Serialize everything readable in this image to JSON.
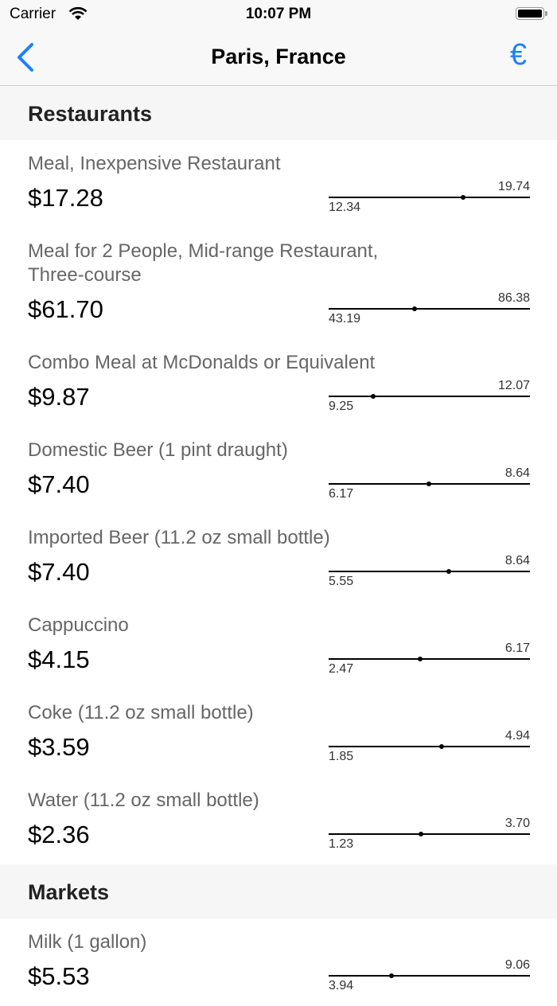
{
  "status_bar": {
    "carrier": "Carrier",
    "time": "10:07 PM"
  },
  "nav": {
    "title": "Paris, France",
    "currency_symbol": "€",
    "accent": "#1a82fb"
  },
  "sections": [
    {
      "title": "Restaurants",
      "items": [
        {
          "label": "Meal, Inexpensive Restaurant",
          "price": "$17.28",
          "value": 17.28,
          "min": "12.34",
          "max": "19.74"
        },
        {
          "label": "Meal for 2 People, Mid-range Restaurant, Three-course",
          "price": "$61.70",
          "value": 61.7,
          "min": "43.19",
          "max": "86.38"
        },
        {
          "label": "Combo Meal at McDonalds or Equivalent",
          "price": "$9.87",
          "value": 9.87,
          "min": "9.25",
          "max": "12.07"
        },
        {
          "label": "Domestic Beer (1 pint draught)",
          "price": "$7.40",
          "value": 7.4,
          "min": "6.17",
          "max": "8.64"
        },
        {
          "label": "Imported Beer (11.2 oz small bottle)",
          "price": "$7.40",
          "value": 7.4,
          "min": "5.55",
          "max": "8.64"
        },
        {
          "label": "Cappuccino",
          "price": "$4.15",
          "value": 4.15,
          "min": "2.47",
          "max": "6.17"
        },
        {
          "label": "Coke (11.2 oz small bottle)",
          "price": "$3.59",
          "value": 3.59,
          "min": "1.85",
          "max": "4.94"
        },
        {
          "label": "Water (11.2 oz small bottle)",
          "price": "$2.36",
          "value": 2.36,
          "min": "1.23",
          "max": "3.70"
        }
      ]
    },
    {
      "title": "Markets",
      "items": [
        {
          "label": "Milk (1 gallon)",
          "price": "$5.53",
          "value": 5.53,
          "min": "3.94",
          "max": "9.06"
        }
      ]
    }
  ]
}
